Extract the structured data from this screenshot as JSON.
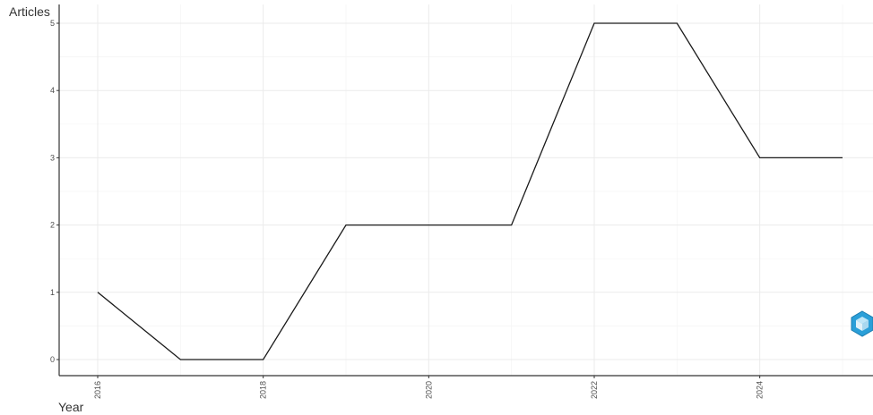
{
  "chart_data": {
    "type": "line",
    "title": "",
    "xlabel": "Year",
    "ylabel": "Articles",
    "x": [
      2016,
      2017,
      2018,
      2019,
      2020,
      2021,
      2022,
      2023,
      2024,
      2025
    ],
    "series": [
      {
        "values": [
          1,
          0,
          0,
          2,
          2,
          2,
          5,
          5,
          3,
          3
        ]
      }
    ],
    "x_ticks": [
      2016,
      2018,
      2020,
      2022,
      2024
    ],
    "x_tick_labels": [
      "2016",
      "2018",
      "2020",
      "2022",
      "2024"
    ],
    "y_ticks": [
      0,
      1,
      2,
      3,
      4,
      5
    ],
    "y_tick_labels": [
      "0",
      "1",
      "2",
      "3",
      "4",
      "5"
    ],
    "xlim": [
      2016,
      2025
    ],
    "ylim": [
      0,
      5
    ],
    "grid": true,
    "legend": "none",
    "colors": {
      "line": "#1a1a1a",
      "grid": "#ebebeb",
      "axis": "#333333",
      "logo": "#2a9fd8"
    },
    "icon": "package-cube-icon"
  }
}
